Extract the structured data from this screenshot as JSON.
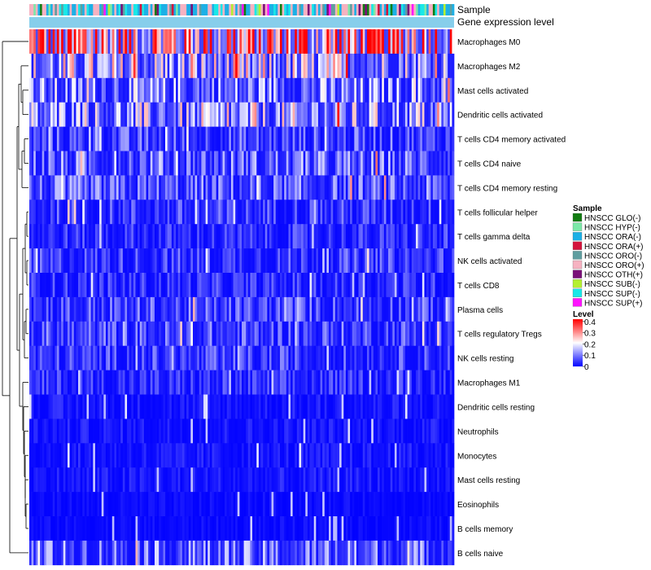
{
  "chart_data": {
    "type": "heatmap",
    "annotation_tracks": [
      "Sample",
      "Gene expression level"
    ],
    "rows": [
      "Macrophages M0",
      "Macrophages M2",
      "Mast cells activated",
      "Dendritic cells activated",
      "T cells CD4 memory activated",
      "T cells CD4 naive",
      "T cells CD4 memory resting",
      "T cells follicular helper",
      "T cells gamma delta",
      "NK cells activated",
      "T cells CD8",
      "Plasma cells",
      "T cells regulatory  Tregs",
      "NK cells resting",
      "Macrophages M1",
      "Dendritic cells resting",
      "Neutrophils",
      "Monocytes",
      "Mast cells resting",
      "Eosinophils",
      "B cells memory",
      "B cells naive"
    ],
    "row_mean_level": [
      0.32,
      0.14,
      0.1,
      0.12,
      0.06,
      0.08,
      0.07,
      0.05,
      0.04,
      0.05,
      0.04,
      0.06,
      0.06,
      0.05,
      0.04,
      0.02,
      0.02,
      0.02,
      0.02,
      0.01,
      0.01,
      0.08
    ],
    "n_samples": 200,
    "sample_legend": {
      "title": "Sample",
      "entries": [
        {
          "label": "HNSCC GLO(-)",
          "color": "#127c12"
        },
        {
          "label": "HNSCC HYP(-)",
          "color": "#7ce8a8"
        },
        {
          "label": "HNSCC ORA(-)",
          "color": "#1cb0e6"
        },
        {
          "label": "HNSCC ORA(+)",
          "color": "#d4143c"
        },
        {
          "label": "HNSCC ORO(-)",
          "color": "#5f9ea0"
        },
        {
          "label": "HNSCC ORO(+)",
          "color": "#f6b2c1"
        },
        {
          "label": "HNSCC OTH(+)",
          "color": "#7a1078"
        },
        {
          "label": "HNSCC SUB(-)",
          "color": "#b4f030"
        },
        {
          "label": "HNSCC SUP(-)",
          "color": "#18e8e8"
        },
        {
          "label": "HNSCC SUP(+)",
          "color": "#ff14ff"
        }
      ]
    },
    "level_legend": {
      "title": "Level",
      "ticks": [
        "0.4",
        "0.3",
        "0.2",
        "0.1",
        "0"
      ],
      "tick_values": [
        0.4,
        0.3,
        0.2,
        0.1,
        0
      ],
      "range": [
        0,
        0.42
      ],
      "color_low": "#0000ff",
      "color_mid": "#ffffff",
      "color_high": "#ff0000"
    },
    "expression_level_bar_color": "#87ceeb"
  }
}
